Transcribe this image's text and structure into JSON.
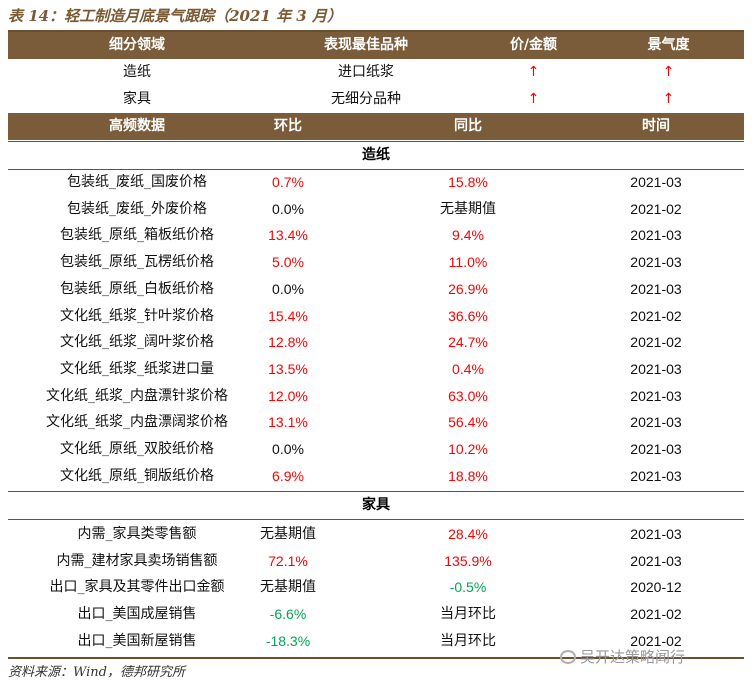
{
  "title": "表 14：轻工制造月底景气跟踪（2021 年 3 月）",
  "header1": [
    "细分领域",
    "表现最佳品种",
    "价/金额",
    "景气度"
  ],
  "top_rows": [
    {
      "sector": "造纸",
      "best": "进口纸浆",
      "price": "↑",
      "climate": "↑"
    },
    {
      "sector": "家具",
      "best": "无细分品种",
      "price": "↑",
      "climate": "↑"
    }
  ],
  "header2": [
    "高频数据",
    "环比",
    "同比",
    "时间"
  ],
  "section_paper": "造纸",
  "paper_rows": [
    {
      "name": "包装纸_废纸_国废价格",
      "mom": "0.7%",
      "yoy": "15.8%",
      "date": "2021-03"
    },
    {
      "name": "包装纸_废纸_外废价格",
      "mom": "0.0%",
      "yoy": "无基期值",
      "date": "2021-02"
    },
    {
      "name": "包装纸_原纸_箱板纸价格",
      "mom": "13.4%",
      "yoy": "9.4%",
      "date": "2021-03"
    },
    {
      "name": "包装纸_原纸_瓦楞纸价格",
      "mom": "5.0%",
      "yoy": "11.0%",
      "date": "2021-03"
    },
    {
      "name": "包装纸_原纸_白板纸价格",
      "mom": "0.0%",
      "yoy": "26.9%",
      "date": "2021-03"
    },
    {
      "name": "文化纸_纸浆_针叶浆价格",
      "mom": "15.4%",
      "yoy": "36.6%",
      "date": "2021-02"
    },
    {
      "name": "文化纸_纸浆_阔叶浆价格",
      "mom": "12.8%",
      "yoy": "24.7%",
      "date": "2021-02"
    },
    {
      "name": "文化纸_纸浆_纸浆进口量",
      "mom": "13.5%",
      "yoy": "0.4%",
      "date": "2021-03"
    },
    {
      "name": "文化纸_纸浆_内盘漂针浆价格",
      "mom": "12.0%",
      "yoy": "63.0%",
      "date": "2021-03"
    },
    {
      "name": "文化纸_纸浆_内盘漂阔浆价格",
      "mom": "13.1%",
      "yoy": "56.4%",
      "date": "2021-03"
    },
    {
      "name": "文化纸_原纸_双胶纸价格",
      "mom": "0.0%",
      "yoy": "10.2%",
      "date": "2021-03"
    },
    {
      "name": "文化纸_原纸_铜版纸价格",
      "mom": "6.9%",
      "yoy": "18.8%",
      "date": "2021-03"
    }
  ],
  "section_furniture": "家具",
  "furniture_rows": [
    {
      "name": "内需_家具类零售额",
      "mom": "无基期值",
      "yoy": "28.4%",
      "date": "2021-03"
    },
    {
      "name": "内需_建材家具卖场销售额",
      "mom": "72.1%",
      "yoy": "135.9%",
      "date": "2021-03"
    },
    {
      "name": "出口_家具及其零件出口金额",
      "mom": "无基期值",
      "yoy": "-0.5%",
      "date": "2020-12"
    },
    {
      "name": "出口_美国成屋销售",
      "mom": "-6.6%",
      "yoy": "当月环比",
      "date": "2021-02"
    },
    {
      "name": "出口_美国新屋销售",
      "mom": "-18.3%",
      "yoy": "当月环比",
      "date": "2021-02"
    }
  ],
  "source": "资料来源：Wind，德邦研究所",
  "watermark": "吴开达策略闻行",
  "colors": {
    "header_bg": "#7a5c3b",
    "positive": "#ff0000",
    "negative": "#00a650",
    "title": "#7a5a32"
  }
}
